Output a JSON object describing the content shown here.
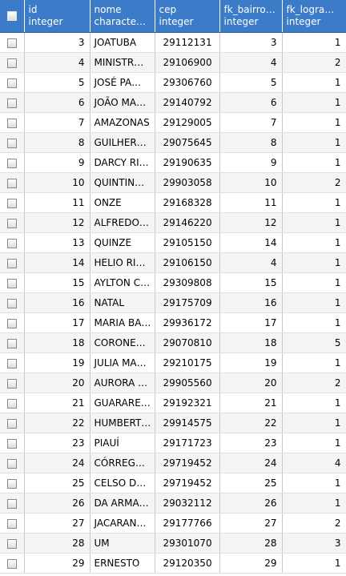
{
  "columns": [
    {
      "name": "id",
      "type": "integer"
    },
    {
      "name": "nome",
      "type": "characte…"
    },
    {
      "name": "cep",
      "type": "integer"
    },
    {
      "name": "fk_bairro…",
      "type": "integer"
    },
    {
      "name": "fk_logra…",
      "type": "integer"
    }
  ],
  "rows": [
    [
      "3",
      "JOATUBA",
      "29112131",
      "3",
      "1"
    ],
    [
      "4",
      "MINISTR…",
      "29106900",
      "4",
      "2"
    ],
    [
      "5",
      "JOSÉ PA…",
      "29306760",
      "5",
      "1"
    ],
    [
      "6",
      "JOÃO MA…",
      "29140792",
      "6",
      "1"
    ],
    [
      "7",
      "AMAZONAS",
      "29129005",
      "7",
      "1"
    ],
    [
      "8",
      "GUILHER…",
      "29075645",
      "8",
      "1"
    ],
    [
      "9",
      "DARCY RI…",
      "29190635",
      "9",
      "1"
    ],
    [
      "10",
      "QUINTIN…",
      "29903058",
      "10",
      "2"
    ],
    [
      "11",
      "ONZE",
      "29168328",
      "11",
      "1"
    ],
    [
      "12",
      "ALFREDO…",
      "29146220",
      "12",
      "1"
    ],
    [
      "13",
      "QUINZE",
      "29105150",
      "14",
      "1"
    ],
    [
      "14",
      "HELIO RI…",
      "29106150",
      "4",
      "1"
    ],
    [
      "15",
      "AYLTON C…",
      "29309808",
      "15",
      "1"
    ],
    [
      "16",
      "NATAL",
      "29175709",
      "16",
      "1"
    ],
    [
      "17",
      "MARIA BA…",
      "29936172",
      "17",
      "1"
    ],
    [
      "18",
      "CORONE…",
      "29070810",
      "18",
      "5"
    ],
    [
      "19",
      "JULIA MA…",
      "29210175",
      "19",
      "1"
    ],
    [
      "20",
      "AURORA …",
      "29905560",
      "20",
      "2"
    ],
    [
      "21",
      "GUARARE…",
      "29192321",
      "21",
      "1"
    ],
    [
      "22",
      "HUMBERT…",
      "29914575",
      "22",
      "1"
    ],
    [
      "23",
      "PIAUÍ",
      "29171723",
      "23",
      "1"
    ],
    [
      "24",
      "CÓRREG…",
      "29719452",
      "24",
      "4"
    ],
    [
      "25",
      "CELSO D…",
      "29719452",
      "25",
      "1"
    ],
    [
      "26",
      "DA ARMA…",
      "29032112",
      "26",
      "1"
    ],
    [
      "27",
      "JACARAN…",
      "29177766",
      "27",
      "2"
    ],
    [
      "28",
      "UM",
      "29301070",
      "28",
      "3"
    ],
    [
      "29",
      "ERNESTO",
      "29120350",
      "29",
      "1"
    ]
  ]
}
